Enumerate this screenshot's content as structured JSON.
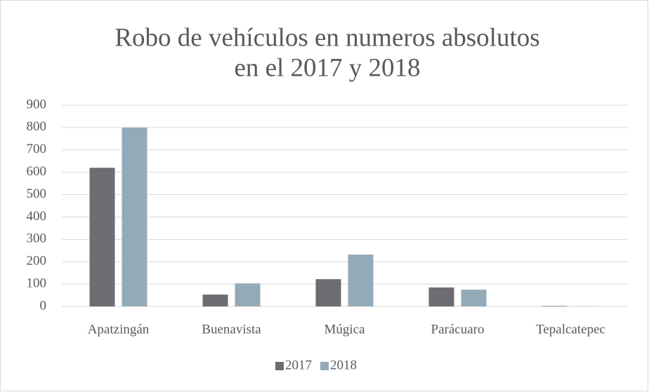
{
  "chart_data": {
    "type": "bar",
    "title": [
      "Robo de vehículos en numeros absolutos",
      "en el 2017 y 2018"
    ],
    "categories": [
      "Apatzingán",
      "Buenavista",
      "Múgica",
      "Parácuaro",
      "Tepalcatepec"
    ],
    "series": [
      {
        "name": "2017",
        "color": "#6d6c70",
        "values": [
          620,
          53,
          122,
          85,
          2
        ]
      },
      {
        "name": "2018",
        "color": "#95aab8",
        "values": [
          800,
          103,
          232,
          75,
          1
        ]
      }
    ],
    "ylim": [
      0,
      900
    ],
    "yticks": [
      0,
      100,
      200,
      300,
      400,
      500,
      600,
      700,
      800,
      900
    ],
    "grid": true,
    "legend": "bottom"
  }
}
